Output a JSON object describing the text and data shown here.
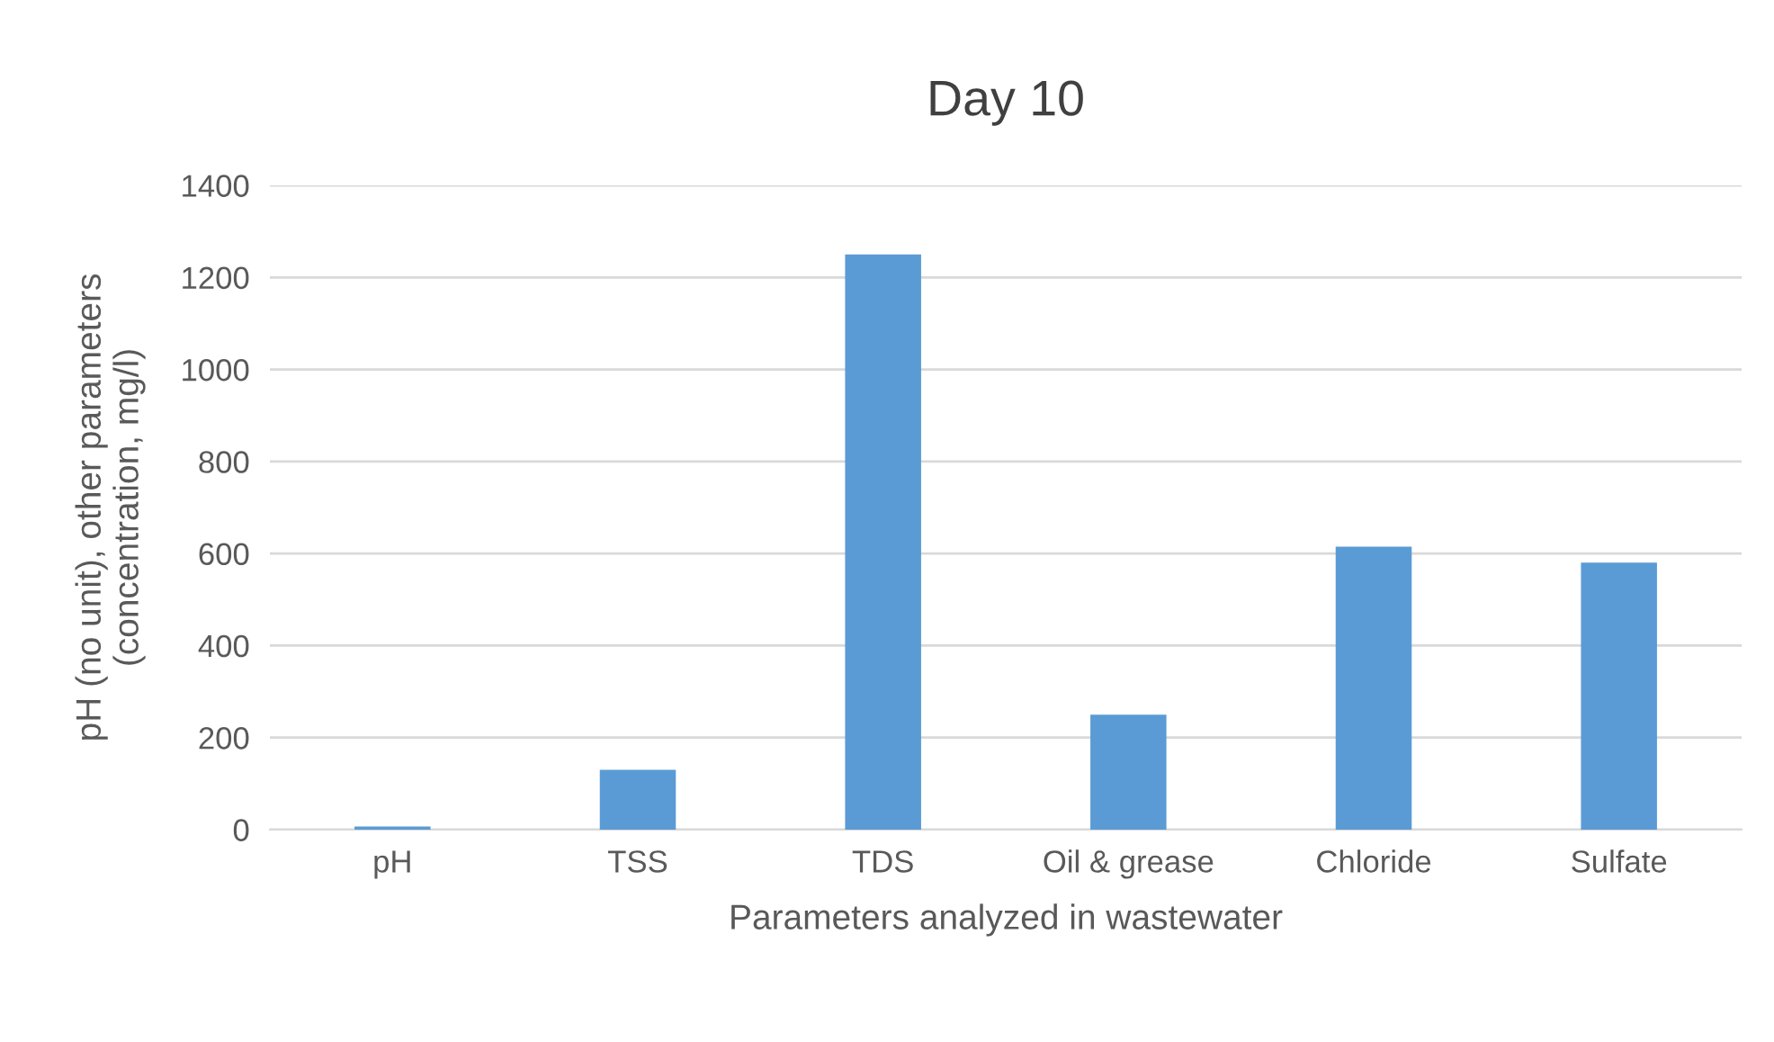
{
  "chart_data": {
    "type": "bar",
    "title": "Day 10",
    "xlabel": "Parameters analyzed in wastewater",
    "ylabel": "pH (no unit), other parameters\n(concentration, mg/l)",
    "categories": [
      "pH",
      "TSS",
      "TDS",
      "Oil & grease",
      "Chloride",
      "Sulfate"
    ],
    "values": [
      7,
      130,
      1250,
      250,
      615,
      580
    ],
    "color": "#5b9bd5",
    "ylim": [
      0,
      1400
    ],
    "yticks": [
      0,
      200,
      400,
      600,
      800,
      1000,
      1200,
      1400
    ],
    "grid": "y",
    "legend": false
  }
}
